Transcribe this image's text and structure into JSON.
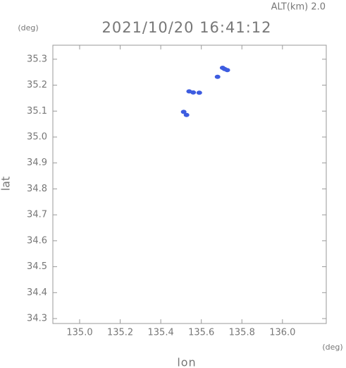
{
  "chart_data": {
    "type": "scatter",
    "title": "2021/10/20 16:41:12",
    "subtitle": "ALT(km) 2.0",
    "x_unit": "(deg)",
    "y_unit": "(deg)",
    "x_label": "lon",
    "y_label": "lat",
    "color": "#3d5ce0",
    "x": [
      135.705,
      135.715,
      135.728,
      135.68,
      135.54,
      135.56,
      135.59,
      135.513,
      135.527
    ],
    "values": [
      35.267,
      35.262,
      35.258,
      35.232,
      35.176,
      35.172,
      35.171,
      35.097,
      35.085
    ],
    "xlim": [
      134.868,
      136.216
    ],
    "ylim": [
      34.281,
      35.354
    ],
    "xticks": [
      {
        "value": 135.0,
        "label": "135.0"
      },
      135.2,
      135.4,
      135.6,
      135.8,
      {
        "value": 136.0,
        "label": "136.0"
      }
    ],
    "yticks": [
      35.3,
      35.2,
      35.1,
      {
        "value": 35.0,
        "label": "35.0"
      },
      34.9,
      34.8,
      34.7,
      34.6,
      34.5,
      34.4,
      34.3
    ]
  }
}
